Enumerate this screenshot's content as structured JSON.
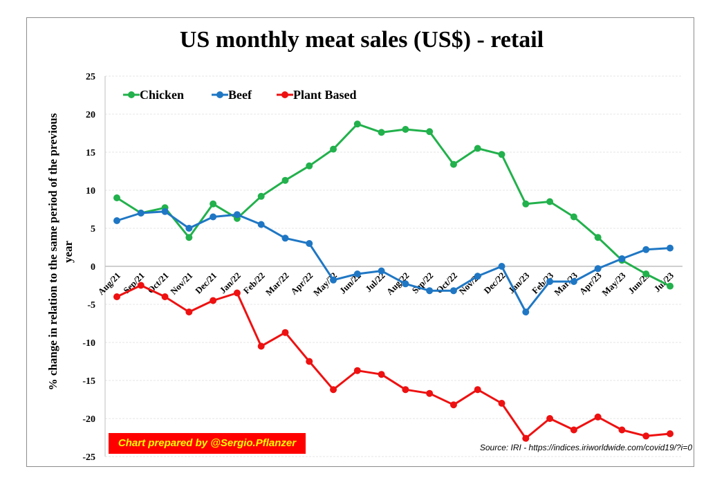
{
  "chart_data": {
    "type": "line",
    "title": "US monthly meat sales (US$) - retail",
    "xlabel": "",
    "ylabel": "% change in relation to the same period of the previous year",
    "ylim": [
      -25,
      25
    ],
    "yticks": [
      25,
      20,
      15,
      10,
      5,
      0,
      -5,
      -10,
      -15,
      -20,
      -25
    ],
    "grid": true,
    "legend_position": "top-left",
    "categories": [
      "Aug/21",
      "Sep/21",
      "Oct/21",
      "Nov/21",
      "Dec/21",
      "Jan/22",
      "Feb/22",
      "Mar/22",
      "Apr/22",
      "May/22",
      "Jun/22",
      "Jul/22",
      "Aug/22",
      "Sep/22",
      "Oct/22",
      "Nov/22",
      "Dec/22",
      "Jan/23",
      "Feb/23",
      "Mar/23",
      "Apr/23",
      "May/23",
      "Jun/23",
      "Jul/23"
    ],
    "series": [
      {
        "name": "Chicken",
        "color": "#22b14c",
        "values": [
          9.0,
          7.0,
          7.7,
          3.8,
          8.2,
          6.3,
          9.2,
          11.3,
          13.2,
          15.4,
          18.7,
          17.6,
          18.0,
          17.7,
          13.4,
          15.5,
          14.7,
          8.2,
          8.5,
          6.5,
          3.8,
          0.8,
          -1.0,
          -2.6
        ]
      },
      {
        "name": "Beef",
        "color": "#1f77c4",
        "values": [
          6.0,
          7.0,
          7.2,
          5.0,
          6.5,
          6.8,
          5.5,
          3.7,
          3.0,
          -1.8,
          -1.0,
          -0.6,
          -2.3,
          -3.2,
          -3.2,
          -1.3,
          0.0,
          -6.0,
          -2.0,
          -2.0,
          -0.3,
          1.0,
          2.2,
          2.4
        ]
      },
      {
        "name": "Plant Based",
        "color": "#ee1111",
        "values": [
          -4.0,
          -2.5,
          -4.0,
          -6.0,
          -4.5,
          -3.5,
          -10.5,
          -8.7,
          -12.5,
          -16.2,
          -13.7,
          -14.2,
          -16.2,
          -16.7,
          -18.2,
          -16.2,
          -18.0,
          -22.6,
          -20.0,
          -21.5,
          -19.8,
          -21.5,
          -22.3,
          -22.0
        ]
      }
    ],
    "annotations": [
      "Chart prepared by @Sergio.Pflanzer",
      "Source: IRI - https://indices.iriworldwide.com/covid19/?i=0"
    ]
  },
  "credit_text": "Chart prepared by @Sergio.Pflanzer",
  "source_text": "Source: IRI - https://indices.iriworldwide.com/covid19/?i=0",
  "colors": {
    "credit_bg": "#ff0000",
    "credit_fg": "#ffff00",
    "gridline": "#e6e6e6",
    "axis": "#bfbfbf"
  }
}
